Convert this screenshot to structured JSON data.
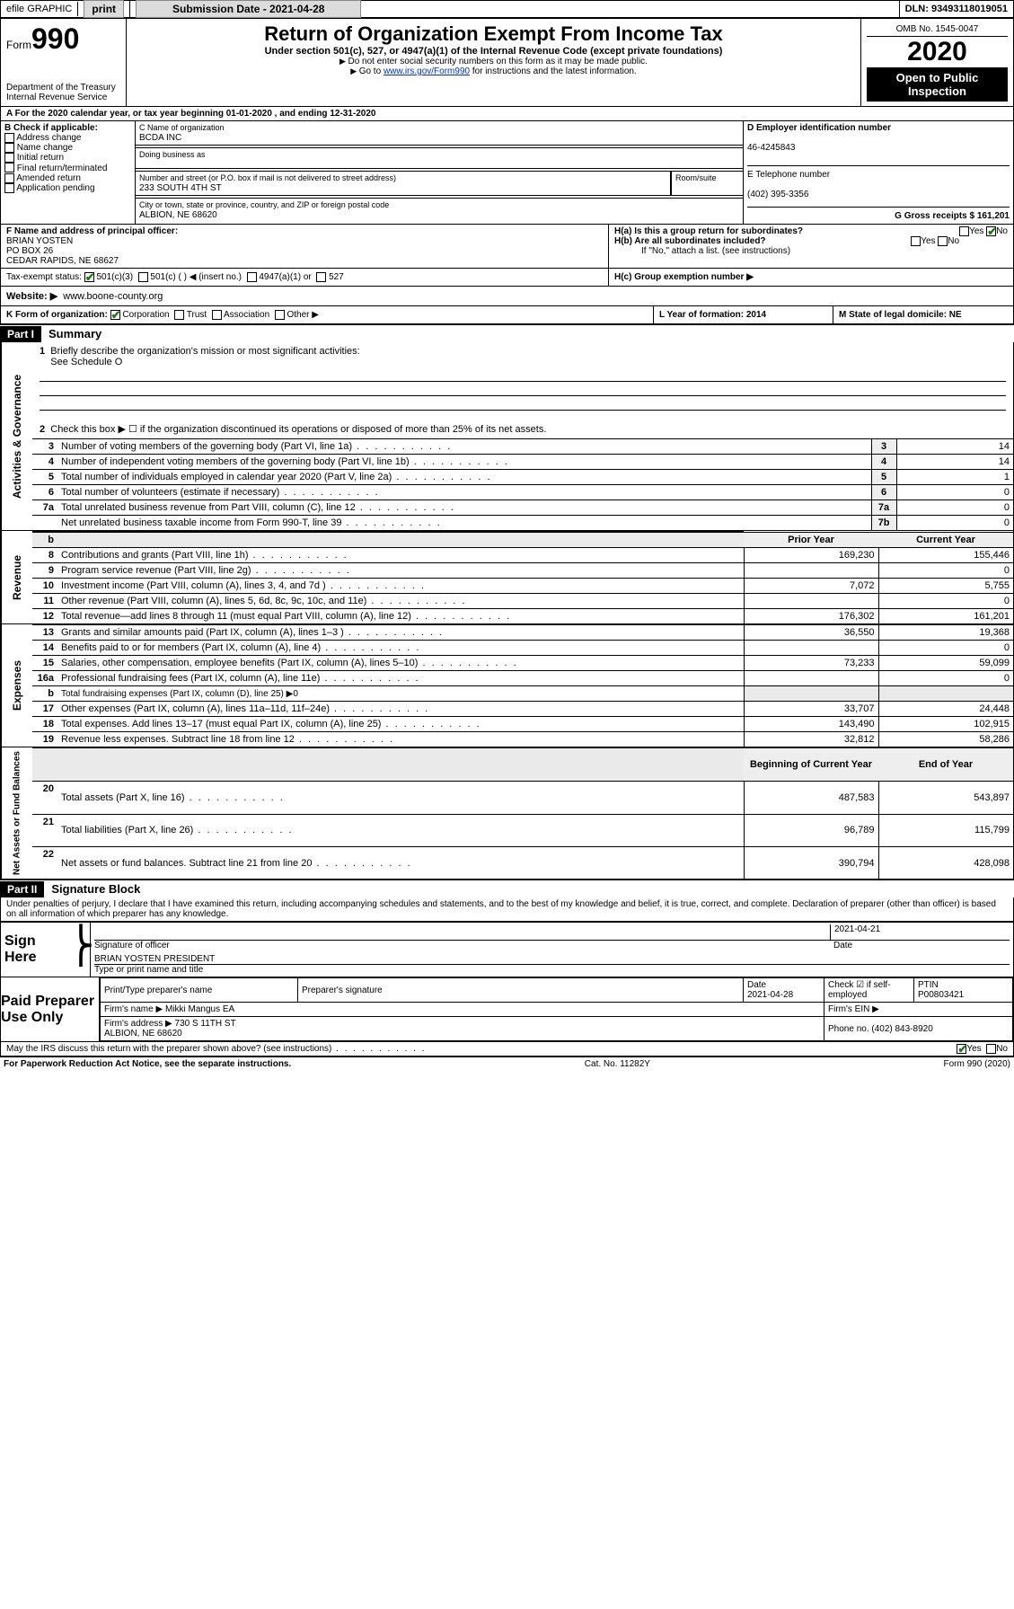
{
  "topbar": {
    "efile": "efile GRAPHIC",
    "print": "print",
    "sub_label": "Submission Date - 2021-04-28",
    "dln": "DLN: 93493118019051"
  },
  "header": {
    "form_label": "Form",
    "form_no": "990",
    "dept": "Department of the Treasury\nInternal Revenue Service",
    "title": "Return of Organization Exempt From Income Tax",
    "sub1": "Under section 501(c), 527, or 4947(a)(1) of the Internal Revenue Code (except private foundations)",
    "sub2": "Do not enter social security numbers on this form as it may be made public.",
    "sub3_pre": "Go to ",
    "sub3_link": "www.irs.gov/Form990",
    "sub3_post": " for instructions and the latest information.",
    "omb": "OMB No. 1545-0047",
    "year": "2020",
    "badge": "Open to Public Inspection"
  },
  "rowA": "A For the 2020 calendar year, or tax year beginning 01-01-2020   , and ending 12-31-2020",
  "colB": {
    "label": "B Check if applicable:",
    "items": [
      "Address change",
      "Name change",
      "Initial return",
      "Final return/terminated",
      "Amended return",
      "Application pending"
    ]
  },
  "colC": {
    "c_label": "C Name of organization",
    "c_val": "BCDA INC",
    "dba_label": "Doing business as",
    "addr_label": "Number and street (or P.O. box if mail is not delivered to street address)",
    "room_label": "Room/suite",
    "addr_val": "233 SOUTH 4TH ST",
    "city_label": "City or town, state or province, country, and ZIP or foreign postal code",
    "city_val": "ALBION, NE  68620",
    "f_label": "F Name and address of principal officer:",
    "f_val": "BRIAN YOSTEN\nPO BOX 26\nCEDAR RAPIDS, NE  68627"
  },
  "colD": {
    "d_label": "D Employer identification number",
    "d_val": "46-4245843",
    "e_label": "E Telephone number",
    "e_val": "(402) 395-3356",
    "g_label": "G Gross receipts $ 161,201"
  },
  "rowH": {
    "ha": "H(a)  Is this a group return for subordinates?",
    "hb": "H(b)  Are all subordinates included?",
    "hb_note": "If \"No,\" attach a list. (see instructions)",
    "hc": "H(c)  Group exemption number ▶",
    "yes": "Yes",
    "no": "No"
  },
  "rowI": {
    "label": "Tax-exempt status:",
    "opts": [
      "501(c)(3)",
      "501(c) (  ) ◀ (insert no.)",
      "4947(a)(1) or",
      "527"
    ]
  },
  "rowJ": {
    "label": "Website: ▶",
    "val": "www.boone-county.org"
  },
  "rowK": {
    "label": "K Form of organization:",
    "opts": [
      "Corporation",
      "Trust",
      "Association",
      "Other ▶"
    ],
    "l_label": "L Year of formation: 2014",
    "m_label": "M State of legal domicile: NE"
  },
  "parts": {
    "p1": "Part I",
    "p1t": "Summary",
    "p2": "Part II",
    "p2t": "Signature Block"
  },
  "summary": {
    "q1": "Briefly describe the organization's mission or most significant activities:",
    "q1v": "See Schedule O",
    "q2": "Check this box ▶ ☐  if the organization discontinued its operations or disposed of more than 25% of its net assets.",
    "rows": [
      {
        "n": "3",
        "t": "Number of voting members of the governing body (Part VI, line 1a)",
        "l": "3",
        "v": "14"
      },
      {
        "n": "4",
        "t": "Number of independent voting members of the governing body (Part VI, line 1b)",
        "l": "4",
        "v": "14"
      },
      {
        "n": "5",
        "t": "Total number of individuals employed in calendar year 2020 (Part V, line 2a)",
        "l": "5",
        "v": "1"
      },
      {
        "n": "6",
        "t": "Total number of volunteers (estimate if necessary)",
        "l": "6",
        "v": "0"
      },
      {
        "n": "7a",
        "t": "Total unrelated business revenue from Part VIII, column (C), line 12",
        "l": "7a",
        "v": "0"
      },
      {
        "n": "",
        "t": "Net unrelated business taxable income from Form 990-T, line 39",
        "l": "7b",
        "v": "0"
      }
    ],
    "hdr_prior": "Prior Year",
    "hdr_curr": "Current Year",
    "revenue": [
      {
        "n": "8",
        "t": "Contributions and grants (Part VIII, line 1h)",
        "p": "169,230",
        "c": "155,446"
      },
      {
        "n": "9",
        "t": "Program service revenue (Part VIII, line 2g)",
        "p": "",
        "c": "0"
      },
      {
        "n": "10",
        "t": "Investment income (Part VIII, column (A), lines 3, 4, and 7d )",
        "p": "7,072",
        "c": "5,755"
      },
      {
        "n": "11",
        "t": "Other revenue (Part VIII, column (A), lines 5, 6d, 8c, 9c, 10c, and 11e)",
        "p": "",
        "c": "0"
      },
      {
        "n": "12",
        "t": "Total revenue—add lines 8 through 11 (must equal Part VIII, column (A), line 12)",
        "p": "176,302",
        "c": "161,201"
      }
    ],
    "expenses": [
      {
        "n": "13",
        "t": "Grants and similar amounts paid (Part IX, column (A), lines 1–3 )",
        "p": "36,550",
        "c": "19,368"
      },
      {
        "n": "14",
        "t": "Benefits paid to or for members (Part IX, column (A), line 4)",
        "p": "",
        "c": "0"
      },
      {
        "n": "15",
        "t": "Salaries, other compensation, employee benefits (Part IX, column (A), lines 5–10)",
        "p": "73,233",
        "c": "59,099"
      },
      {
        "n": "16a",
        "t": "Professional fundraising fees (Part IX, column (A), line 11e)",
        "p": "",
        "c": "0"
      },
      {
        "n": "b",
        "t": "Total fundraising expenses (Part IX, column (D), line 25) ▶0",
        "p": "—",
        "c": "—"
      },
      {
        "n": "17",
        "t": "Other expenses (Part IX, column (A), lines 11a–11d, 11f–24e)",
        "p": "33,707",
        "c": "24,448"
      },
      {
        "n": "18",
        "t": "Total expenses. Add lines 13–17 (must equal Part IX, column (A), line 25)",
        "p": "143,490",
        "c": "102,915"
      },
      {
        "n": "19",
        "t": "Revenue less expenses. Subtract line 18 from line 12",
        "p": "32,812",
        "c": "58,286"
      }
    ],
    "hdr_beg": "Beginning of Current Year",
    "hdr_end": "End of Year",
    "netassets": [
      {
        "n": "20",
        "t": "Total assets (Part X, line 16)",
        "p": "487,583",
        "c": "543,897"
      },
      {
        "n": "21",
        "t": "Total liabilities (Part X, line 26)",
        "p": "96,789",
        "c": "115,799"
      },
      {
        "n": "22",
        "t": "Net assets or fund balances. Subtract line 21 from line 20",
        "p": "390,794",
        "c": "428,098"
      }
    ],
    "side_gov": "Activities & Governance",
    "side_rev": "Revenue",
    "side_exp": "Expenses",
    "side_net": "Net Assets or Fund Balances"
  },
  "sig": {
    "perjury": "Under penalties of perjury, I declare that I have examined this return, including accompanying schedules and statements, and to the best of my knowledge and belief, it is true, correct, and complete. Declaration of preparer (other than officer) is based on all information of which preparer has any knowledge.",
    "sign_here": "Sign Here",
    "sig_officer": "Signature of officer",
    "date_lbl": "Date",
    "date_val": "2021-04-21",
    "name_title": "BRIAN YOSTEN  PRESIDENT",
    "name_lbl": "Type or print name and title"
  },
  "prep": {
    "label": "Paid Preparer Use Only",
    "c1": "Print/Type preparer's name",
    "c2": "Preparer's signature",
    "c3": "Date",
    "c3v": "2021-04-28",
    "c4": "Check ☑ if self-employed",
    "c5": "PTIN",
    "c5v": "P00803421",
    "firm_name_l": "Firm's name   ▶",
    "firm_name": "Mikki Mangus EA",
    "firm_ein": "Firm's EIN ▶",
    "firm_addr_l": "Firm's address ▶",
    "firm_addr": "730 S 11TH ST\nALBION, NE  68620",
    "phone_l": "Phone no. (402) 843-8920"
  },
  "footer": {
    "discuss": "May the IRS discuss this return with the preparer shown above? (see instructions)",
    "yes": "Yes",
    "no": "No",
    "pra": "For Paperwork Reduction Act Notice, see the separate instructions.",
    "cat": "Cat. No. 11282Y",
    "form": "Form 990 (2020)"
  }
}
